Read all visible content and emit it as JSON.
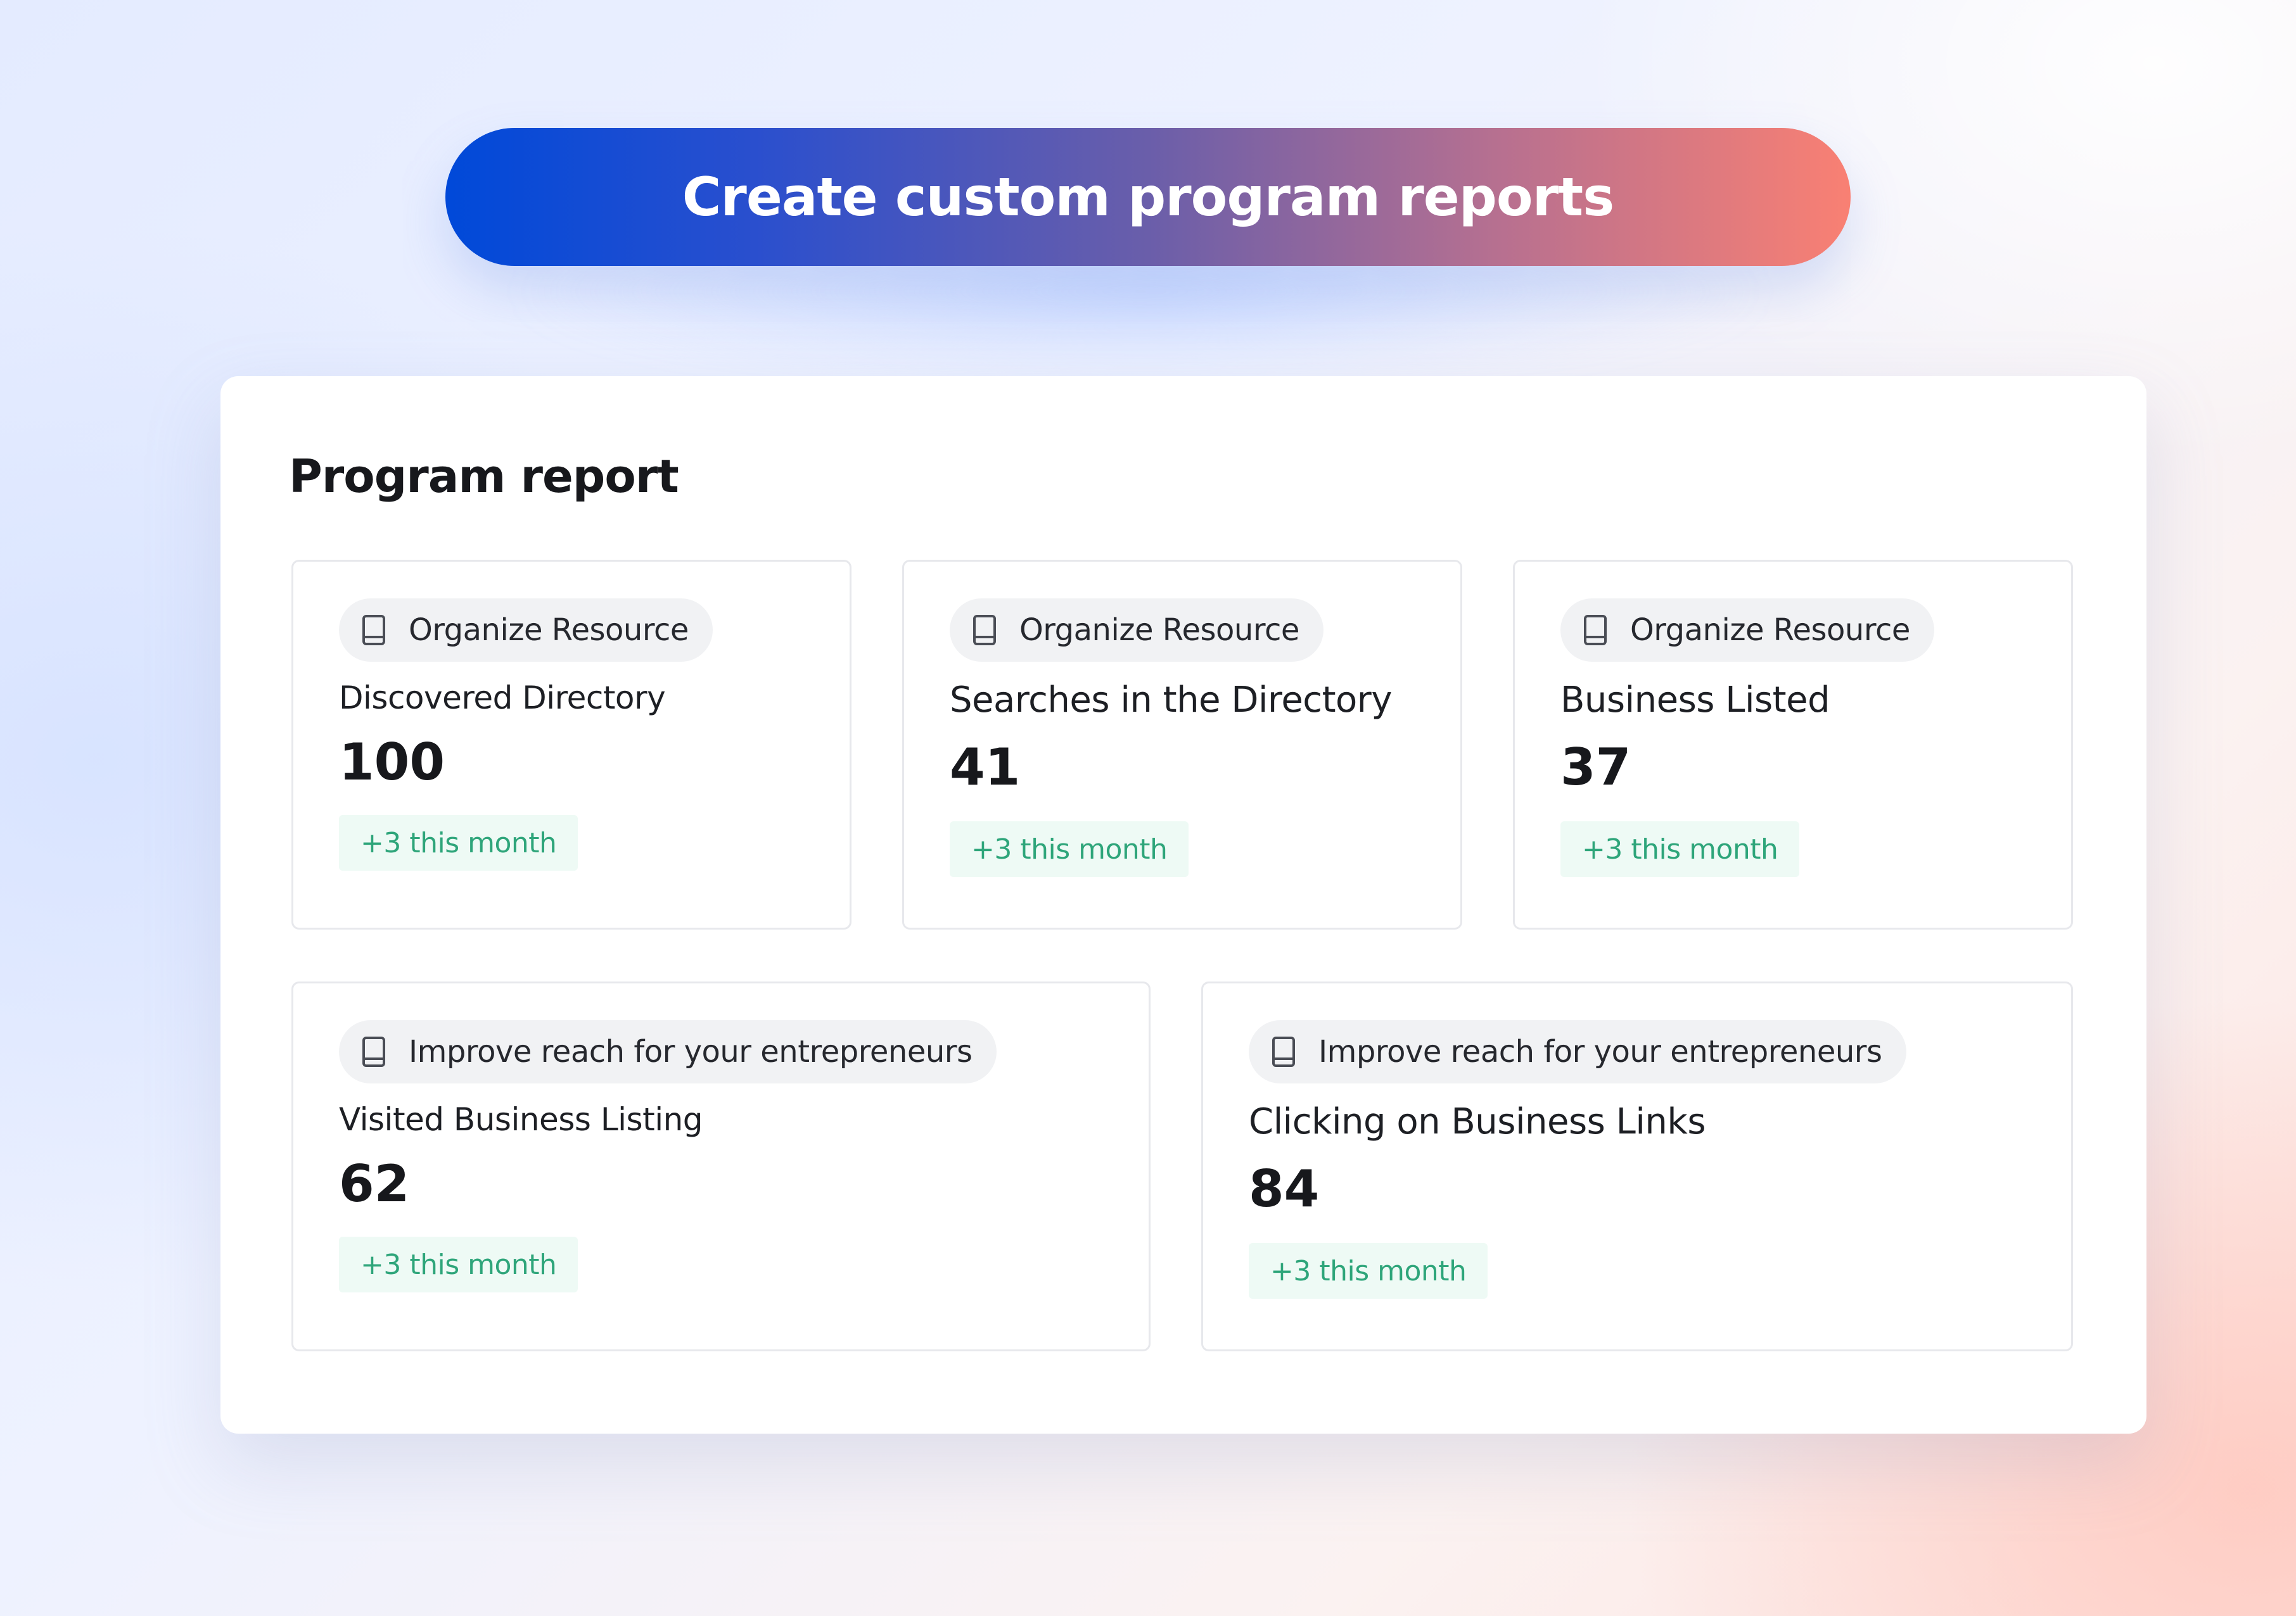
{
  "banner": {
    "title": "Create custom program reports"
  },
  "report": {
    "title": "Program report",
    "cards": [
      {
        "category": "Organize Resource",
        "category_icon": "book-icon",
        "label": "Discovered Directory",
        "value": "100",
        "delta": "+3 this month"
      },
      {
        "category": "Organize Resource",
        "category_icon": "book-icon",
        "label": "Searches in the Directory",
        "value": "41",
        "delta": "+3 this month"
      },
      {
        "category": "Organize Resource",
        "category_icon": "book-icon",
        "label": "Business Listed",
        "value": "37",
        "delta": "+3 this month"
      },
      {
        "category": "Improve reach for your entrepreneurs",
        "category_icon": "book-icon",
        "label": "Visited Business Listing",
        "value": "62",
        "delta": "+3 this month"
      },
      {
        "category": "Improve reach for your entrepreneurs",
        "category_icon": "book-icon",
        "label": "Clicking on Business Links",
        "value": "84",
        "delta": "+3 this month"
      }
    ]
  },
  "colors": {
    "banner_gradient_start": "#0049d9",
    "banner_gradient_end": "#f98073",
    "delta_text": "#2ea57a",
    "delta_background": "#eefaf5"
  }
}
